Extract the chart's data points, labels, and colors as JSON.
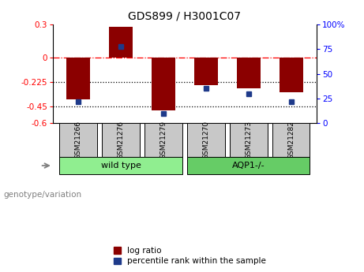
{
  "title": "GDS899 / H3001C07",
  "samples": [
    "GSM21266",
    "GSM21276",
    "GSM21279",
    "GSM21270",
    "GSM21273",
    "GSM21282"
  ],
  "log_ratio": [
    -0.38,
    0.28,
    -0.48,
    -0.25,
    -0.28,
    -0.32
  ],
  "percentile_rank": [
    22,
    78,
    10,
    35,
    30,
    22
  ],
  "ylim": [
    -0.6,
    0.3
  ],
  "yticks_left": [
    0.3,
    0,
    -0.225,
    -0.45,
    -0.6
  ],
  "yticks_right": [
    100,
    75,
    50,
    25,
    0
  ],
  "hlines": [
    0,
    -0.225,
    -0.45
  ],
  "hline_styles": [
    "-.",
    ":",
    ":"
  ],
  "hline_colors": [
    "red",
    "black",
    "black"
  ],
  "bar_color": "#8B0000",
  "dot_color": "#1E3A8A",
  "bar_width": 0.55,
  "legend_bar_label": "log ratio",
  "legend_dot_label": "percentile rank within the sample",
  "genotype_label": "genotype/variation",
  "group_defs": [
    {
      "label": "wild type",
      "start": 0,
      "end": 2,
      "color": "#90EE90"
    },
    {
      "label": "AQP1-/-",
      "start": 3,
      "end": 5,
      "color": "#66CC66"
    }
  ],
  "sample_bg_color": "#C8C8C8",
  "title_fontsize": 10,
  "tick_fontsize": 7.5,
  "sample_fontsize": 6.5,
  "group_fontsize": 8,
  "legend_fontsize": 7.5
}
